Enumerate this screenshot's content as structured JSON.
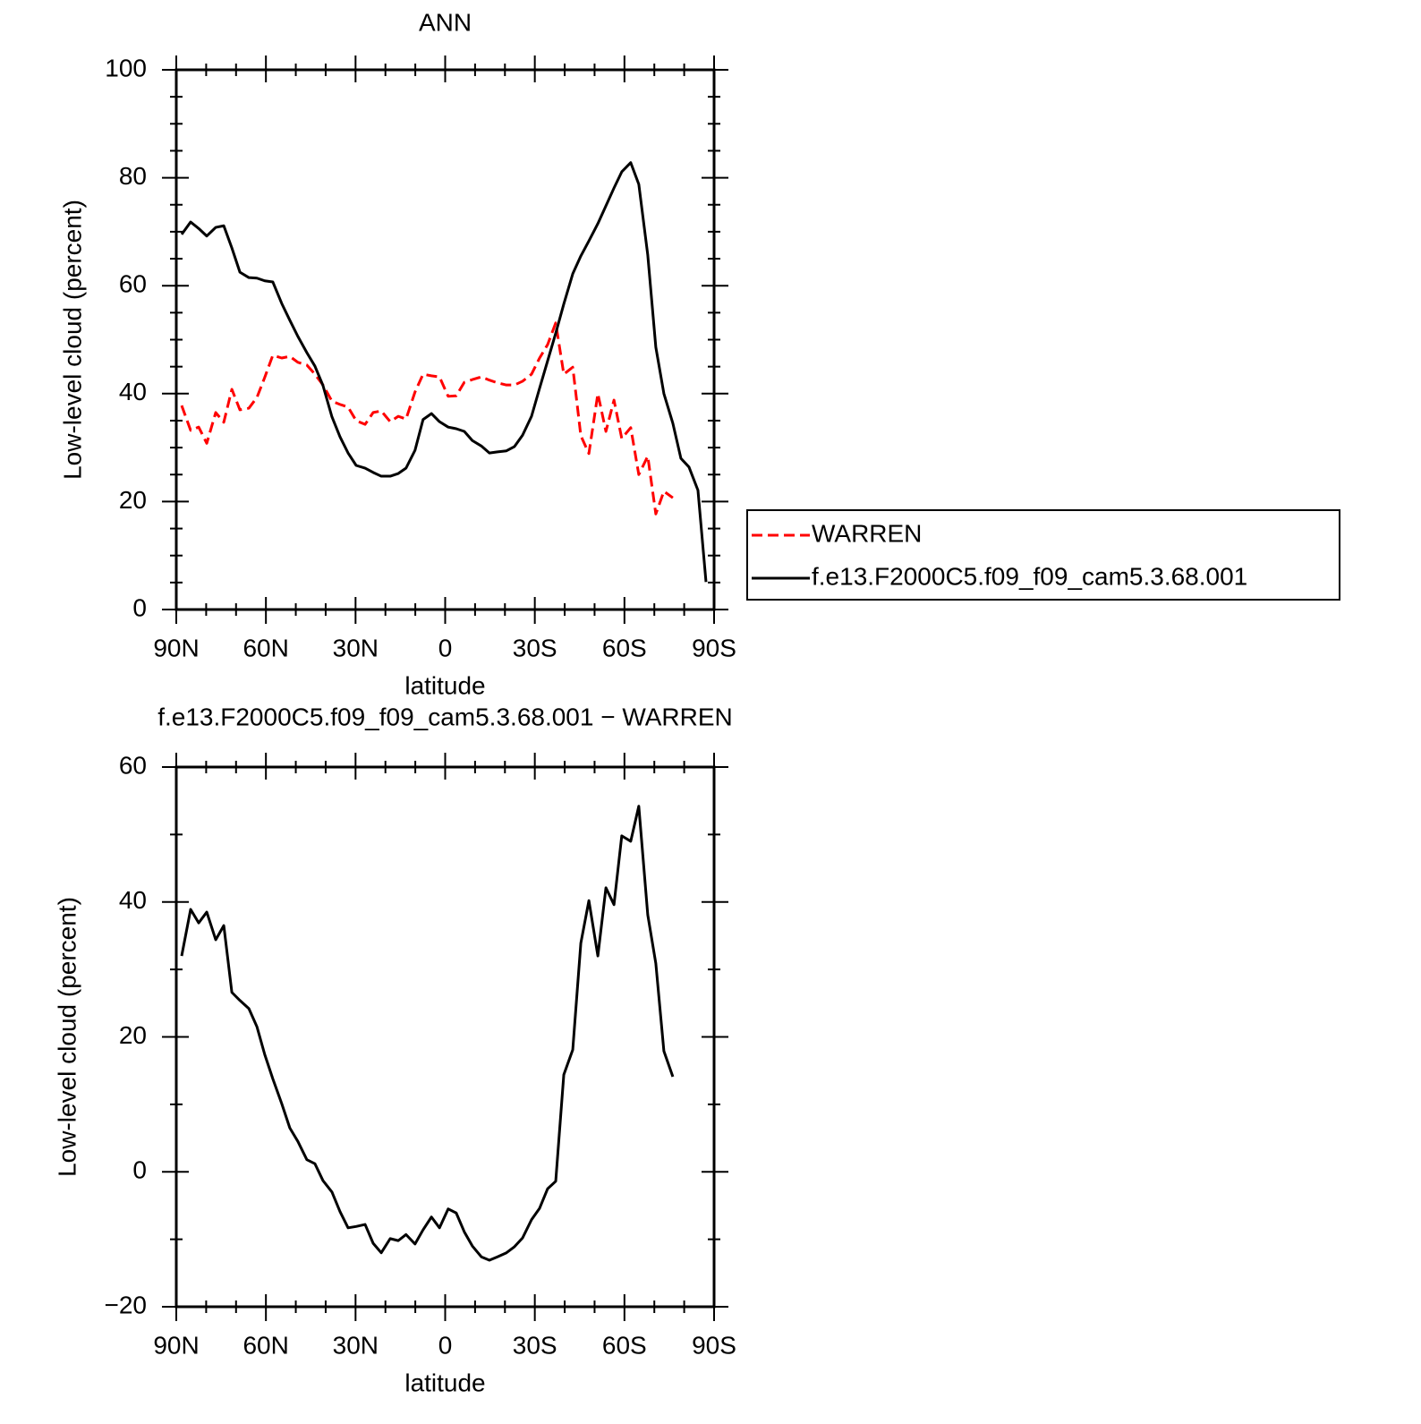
{
  "chart_data": [
    {
      "type": "line",
      "title": "ANN",
      "x_label": "latitude",
      "y_label": "Low-level cloud (percent)",
      "x": [
        88.2,
        85.2,
        82.5,
        79.8,
        76.8,
        74.1,
        71.4,
        68.7,
        65.7,
        63.0,
        60.4,
        57.7,
        54.7,
        52.0,
        49.3,
        46.3,
        43.6,
        40.9,
        37.9,
        35.2,
        32.5,
        29.8,
        26.8,
        24.1,
        21.4,
        18.4,
        15.7,
        13.1,
        10.1,
        7.4,
        4.6,
        1.9,
        -1.0,
        -3.7,
        -6.4,
        -9.1,
        -12.1,
        -14.8,
        -17.5,
        -20.5,
        -23.2,
        -25.9,
        -28.9,
        -31.6,
        -34.3,
        -37.0,
        -39.7,
        -42.7,
        -45.4,
        -48.1,
        -51.1,
        -53.8,
        -56.5,
        -59.1,
        -62.1,
        -64.8,
        -67.8,
        -70.5,
        -73.2,
        -76.2,
        -78.9,
        -81.6,
        -84.6,
        -87.3
      ],
      "xlim": [
        90,
        -90
      ],
      "xticks": [
        {
          "value": 90,
          "label": "90N"
        },
        {
          "value": 60,
          "label": "60N"
        },
        {
          "value": 30,
          "label": "30N"
        },
        0,
        {
          "value": -30,
          "label": "30S"
        },
        {
          "value": -60,
          "label": "60S"
        },
        {
          "value": -90,
          "label": "90S"
        }
      ],
      "ylim": [
        0,
        100
      ],
      "yticks": [
        0,
        20,
        40,
        60,
        80,
        100
      ],
      "legend": "right",
      "series": [
        {
          "name": "WARREN",
          "color": "#ff0000",
          "linestyle": "dashed",
          "values": [
            37.8,
            33.2,
            33.8,
            30.8,
            36.5,
            34.7,
            40.8,
            37.0,
            37.3,
            39.3,
            43.0,
            47.1,
            46.6,
            46.9,
            45.8,
            45.3,
            43.6,
            41.6,
            38.6,
            38.0,
            37.5,
            35.0,
            34.3,
            36.5,
            36.8,
            34.8,
            35.8,
            35.3,
            40.3,
            43.6,
            43.3,
            43.1,
            39.5,
            39.6,
            42.1,
            42.6,
            43.1,
            42.5,
            42.0,
            41.6,
            41.6,
            42.3,
            43.6,
            46.6,
            49.1,
            53.1,
            43.6,
            44.9,
            32.2,
            28.9,
            40.0,
            33.0,
            38.8,
            31.7,
            33.7,
            25.0,
            28.4,
            17.7,
            21.9,
            20.7,
            null,
            null,
            null,
            null
          ]
        },
        {
          "name": "f.e13.F2000C5.f09_f09_cam5.3.68.001",
          "color": "#000000",
          "linestyle": "solid",
          "values": [
            69.5,
            71.8,
            70.6,
            69.2,
            70.8,
            71.1,
            67.0,
            62.5,
            61.5,
            61.4,
            60.9,
            60.7,
            56.7,
            53.6,
            50.6,
            47.6,
            45.1,
            41.5,
            35.7,
            32.0,
            29.0,
            26.7,
            26.2,
            25.4,
            24.7,
            24.7,
            25.2,
            26.2,
            29.5,
            35.2,
            36.3,
            34.8,
            33.8,
            33.5,
            33.0,
            31.3,
            30.3,
            29.0,
            29.2,
            29.4,
            30.2,
            32.3,
            35.8,
            41.0,
            46.1,
            51.2,
            56.6,
            62.2,
            65.5,
            68.3,
            71.5,
            74.8,
            78.1,
            81.1,
            82.8,
            78.8,
            65.7,
            48.6,
            40.0,
            34.5,
            28.0,
            26.4,
            22.1,
            5.1
          ]
        }
      ]
    },
    {
      "type": "line",
      "title": "f.e13.F2000C5.f09_f09_cam5.3.68.001 − WARREN",
      "x_label": "latitude",
      "y_label": "Low-level cloud (percent)",
      "x": [
        88.2,
        85.2,
        82.5,
        79.8,
        76.8,
        74.1,
        71.4,
        68.7,
        65.7,
        63.0,
        60.4,
        57.7,
        54.7,
        52.0,
        49.3,
        46.3,
        43.6,
        40.9,
        37.9,
        35.2,
        32.5,
        29.8,
        26.8,
        24.1,
        21.4,
        18.4,
        15.7,
        13.1,
        10.1,
        7.4,
        4.6,
        1.9,
        -1.0,
        -3.7,
        -6.4,
        -9.1,
        -12.1,
        -14.8,
        -17.5,
        -20.5,
        -23.2,
        -25.9,
        -28.9,
        -31.6,
        -34.3,
        -37.0,
        -39.7,
        -42.7,
        -45.4,
        -48.1,
        -51.1,
        -53.8,
        -56.5,
        -59.1,
        -62.1,
        -64.8,
        -67.8,
        -70.5,
        -73.2,
        -76.2
      ],
      "xlim": [
        90,
        -90
      ],
      "xticks": [
        {
          "value": 90,
          "label": "90N"
        },
        {
          "value": 60,
          "label": "60N"
        },
        {
          "value": 30,
          "label": "30N"
        },
        0,
        {
          "value": -30,
          "label": "30S"
        },
        {
          "value": -60,
          "label": "60S"
        },
        {
          "value": -90,
          "label": "90S"
        }
      ],
      "ylim": [
        -20,
        60
      ],
      "yticks": [
        {
          "value": -20,
          "label": "−20"
        },
        0,
        20,
        40,
        60
      ],
      "series": [
        {
          "color": "#000000",
          "linestyle": "solid",
          "values": [
            32.0,
            38.9,
            36.9,
            38.5,
            34.4,
            36.5,
            26.6,
            25.4,
            24.2,
            21.5,
            17.4,
            13.8,
            10.1,
            6.5,
            4.5,
            1.8,
            1.2,
            -1.3,
            -3.0,
            -5.9,
            -8.3,
            -8.1,
            -7.8,
            -10.6,
            -12.0,
            -9.9,
            -10.2,
            -9.3,
            -10.7,
            -8.6,
            -6.7,
            -8.3,
            -5.5,
            -6.1,
            -8.9,
            -11.0,
            -12.6,
            -13.1,
            -12.6,
            -12.0,
            -11.1,
            -9.8,
            -7.1,
            -5.4,
            -2.5,
            -1.4,
            14.4,
            18.1,
            33.9,
            40.2,
            32.0,
            42.1,
            39.6,
            49.8,
            49.0,
            54.2,
            38.1,
            30.9,
            17.9,
            14.1
          ]
        }
      ]
    }
  ]
}
